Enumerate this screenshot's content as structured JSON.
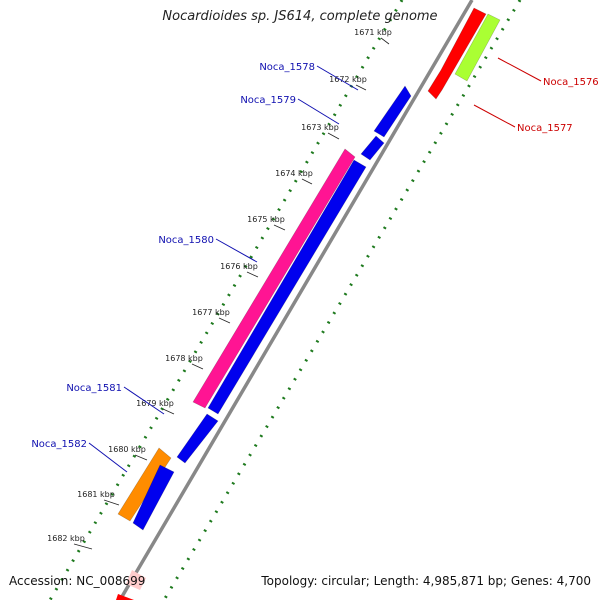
{
  "title": "Nocardioides sp. JS614, complete genome",
  "footer": {
    "accession": "Accession: NC_008699",
    "topology": "Topology: circular; Length: 4,985,871 bp; Genes: 4,700"
  },
  "colors": {
    "backbone": "#888888",
    "ticks": "#1e7a1e",
    "forward_label": "#1010b0",
    "reverse_label": "#cc0000"
  },
  "ticks": [
    {
      "kbp": 1671,
      "label": "1671 kbp"
    },
    {
      "kbp": 1672,
      "label": "1672 kbp"
    },
    {
      "kbp": 1673,
      "label": "1673 kbp"
    },
    {
      "kbp": 1674,
      "label": "1674 kbp"
    },
    {
      "kbp": 1675,
      "label": "1675 kbp"
    },
    {
      "kbp": 1676,
      "label": "1676 kbp"
    },
    {
      "kbp": 1677,
      "label": "1677 kbp"
    },
    {
      "kbp": 1678,
      "label": "1678 kbp"
    },
    {
      "kbp": 1679,
      "label": "1679 kbp"
    },
    {
      "kbp": 1680,
      "label": "1680 kbp"
    },
    {
      "kbp": 1681,
      "label": "1681 kbp"
    },
    {
      "kbp": 1682,
      "label": "1682 kbp"
    }
  ],
  "genes": [
    {
      "name": "Noca_1576",
      "strand": "reverse",
      "color": "#ff0000"
    },
    {
      "name": "Noca_1577",
      "strand": "reverse",
      "color": "#aaff33"
    },
    {
      "name": "Noca_1578",
      "strand": "forward",
      "color": "#0000ee"
    },
    {
      "name": "Noca_1579",
      "strand": "forward",
      "color": "#0000ee"
    },
    {
      "name": "Noca_1580",
      "strand": "forward",
      "color": "#ff1493"
    },
    {
      "name": "Noca_1581",
      "strand": "forward",
      "color": "#0000ee"
    },
    {
      "name": "Noca_1582",
      "strand": "forward",
      "color": "#ff8c00"
    }
  ]
}
